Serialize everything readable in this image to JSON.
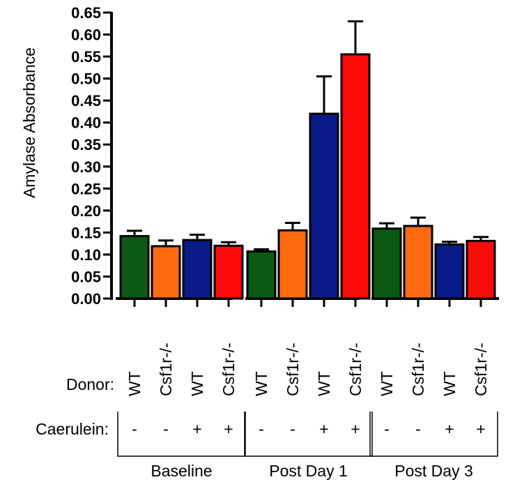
{
  "chart_data": {
    "type": "bar",
    "ylabel": "Amylase Absorbance",
    "ylim": [
      0,
      0.65
    ],
    "yticks": [
      "0.00",
      "0.05",
      "0.10",
      "0.15",
      "0.20",
      "0.25",
      "0.30",
      "0.35",
      "0.40",
      "0.45",
      "0.50",
      "0.55",
      "0.60",
      "0.65"
    ],
    "row_labels": {
      "donor": "Donor:",
      "caerulein": "Caerulein:"
    },
    "groups": [
      {
        "name": "Baseline",
        "bars": [
          {
            "donor": "WT",
            "caerulein": "-",
            "value": 0.142,
            "error": 0.012,
            "color": "#0a5a14"
          },
          {
            "donor": "Csf1r-/-",
            "caerulein": "-",
            "value": 0.119,
            "error": 0.013,
            "color": "#ff6a10"
          },
          {
            "donor": "WT",
            "caerulein": "+",
            "value": 0.133,
            "error": 0.012,
            "color": "#0a1a86"
          },
          {
            "donor": "Csf1r-/-",
            "caerulein": "+",
            "value": 0.12,
            "error": 0.008,
            "color": "#ff0a0a"
          }
        ]
      },
      {
        "name": "Post Day 1",
        "bars": [
          {
            "donor": "WT",
            "caerulein": "-",
            "value": 0.107,
            "error": 0.005,
            "color": "#0a5a14"
          },
          {
            "donor": "Csf1r-/-",
            "caerulein": "-",
            "value": 0.155,
            "error": 0.017,
            "color": "#ff6a10"
          },
          {
            "donor": "WT",
            "caerulein": "+",
            "value": 0.42,
            "error": 0.085,
            "color": "#0a1a86"
          },
          {
            "donor": "Csf1r-/-",
            "caerulein": "+",
            "value": 0.555,
            "error": 0.075,
            "color": "#ff0a0a"
          }
        ]
      },
      {
        "name": "Post Day 3",
        "bars": [
          {
            "donor": "WT",
            "caerulein": "-",
            "value": 0.159,
            "error": 0.012,
            "color": "#0a5a14"
          },
          {
            "donor": "Csf1r-/-",
            "caerulein": "-",
            "value": 0.165,
            "error": 0.019,
            "color": "#ff6a10"
          },
          {
            "donor": "WT",
            "caerulein": "+",
            "value": 0.123,
            "error": 0.006,
            "color": "#0a1a86"
          },
          {
            "donor": "Csf1r-/-",
            "caerulein": "+",
            "value": 0.131,
            "error": 0.009,
            "color": "#ff0a0a"
          }
        ]
      }
    ]
  }
}
